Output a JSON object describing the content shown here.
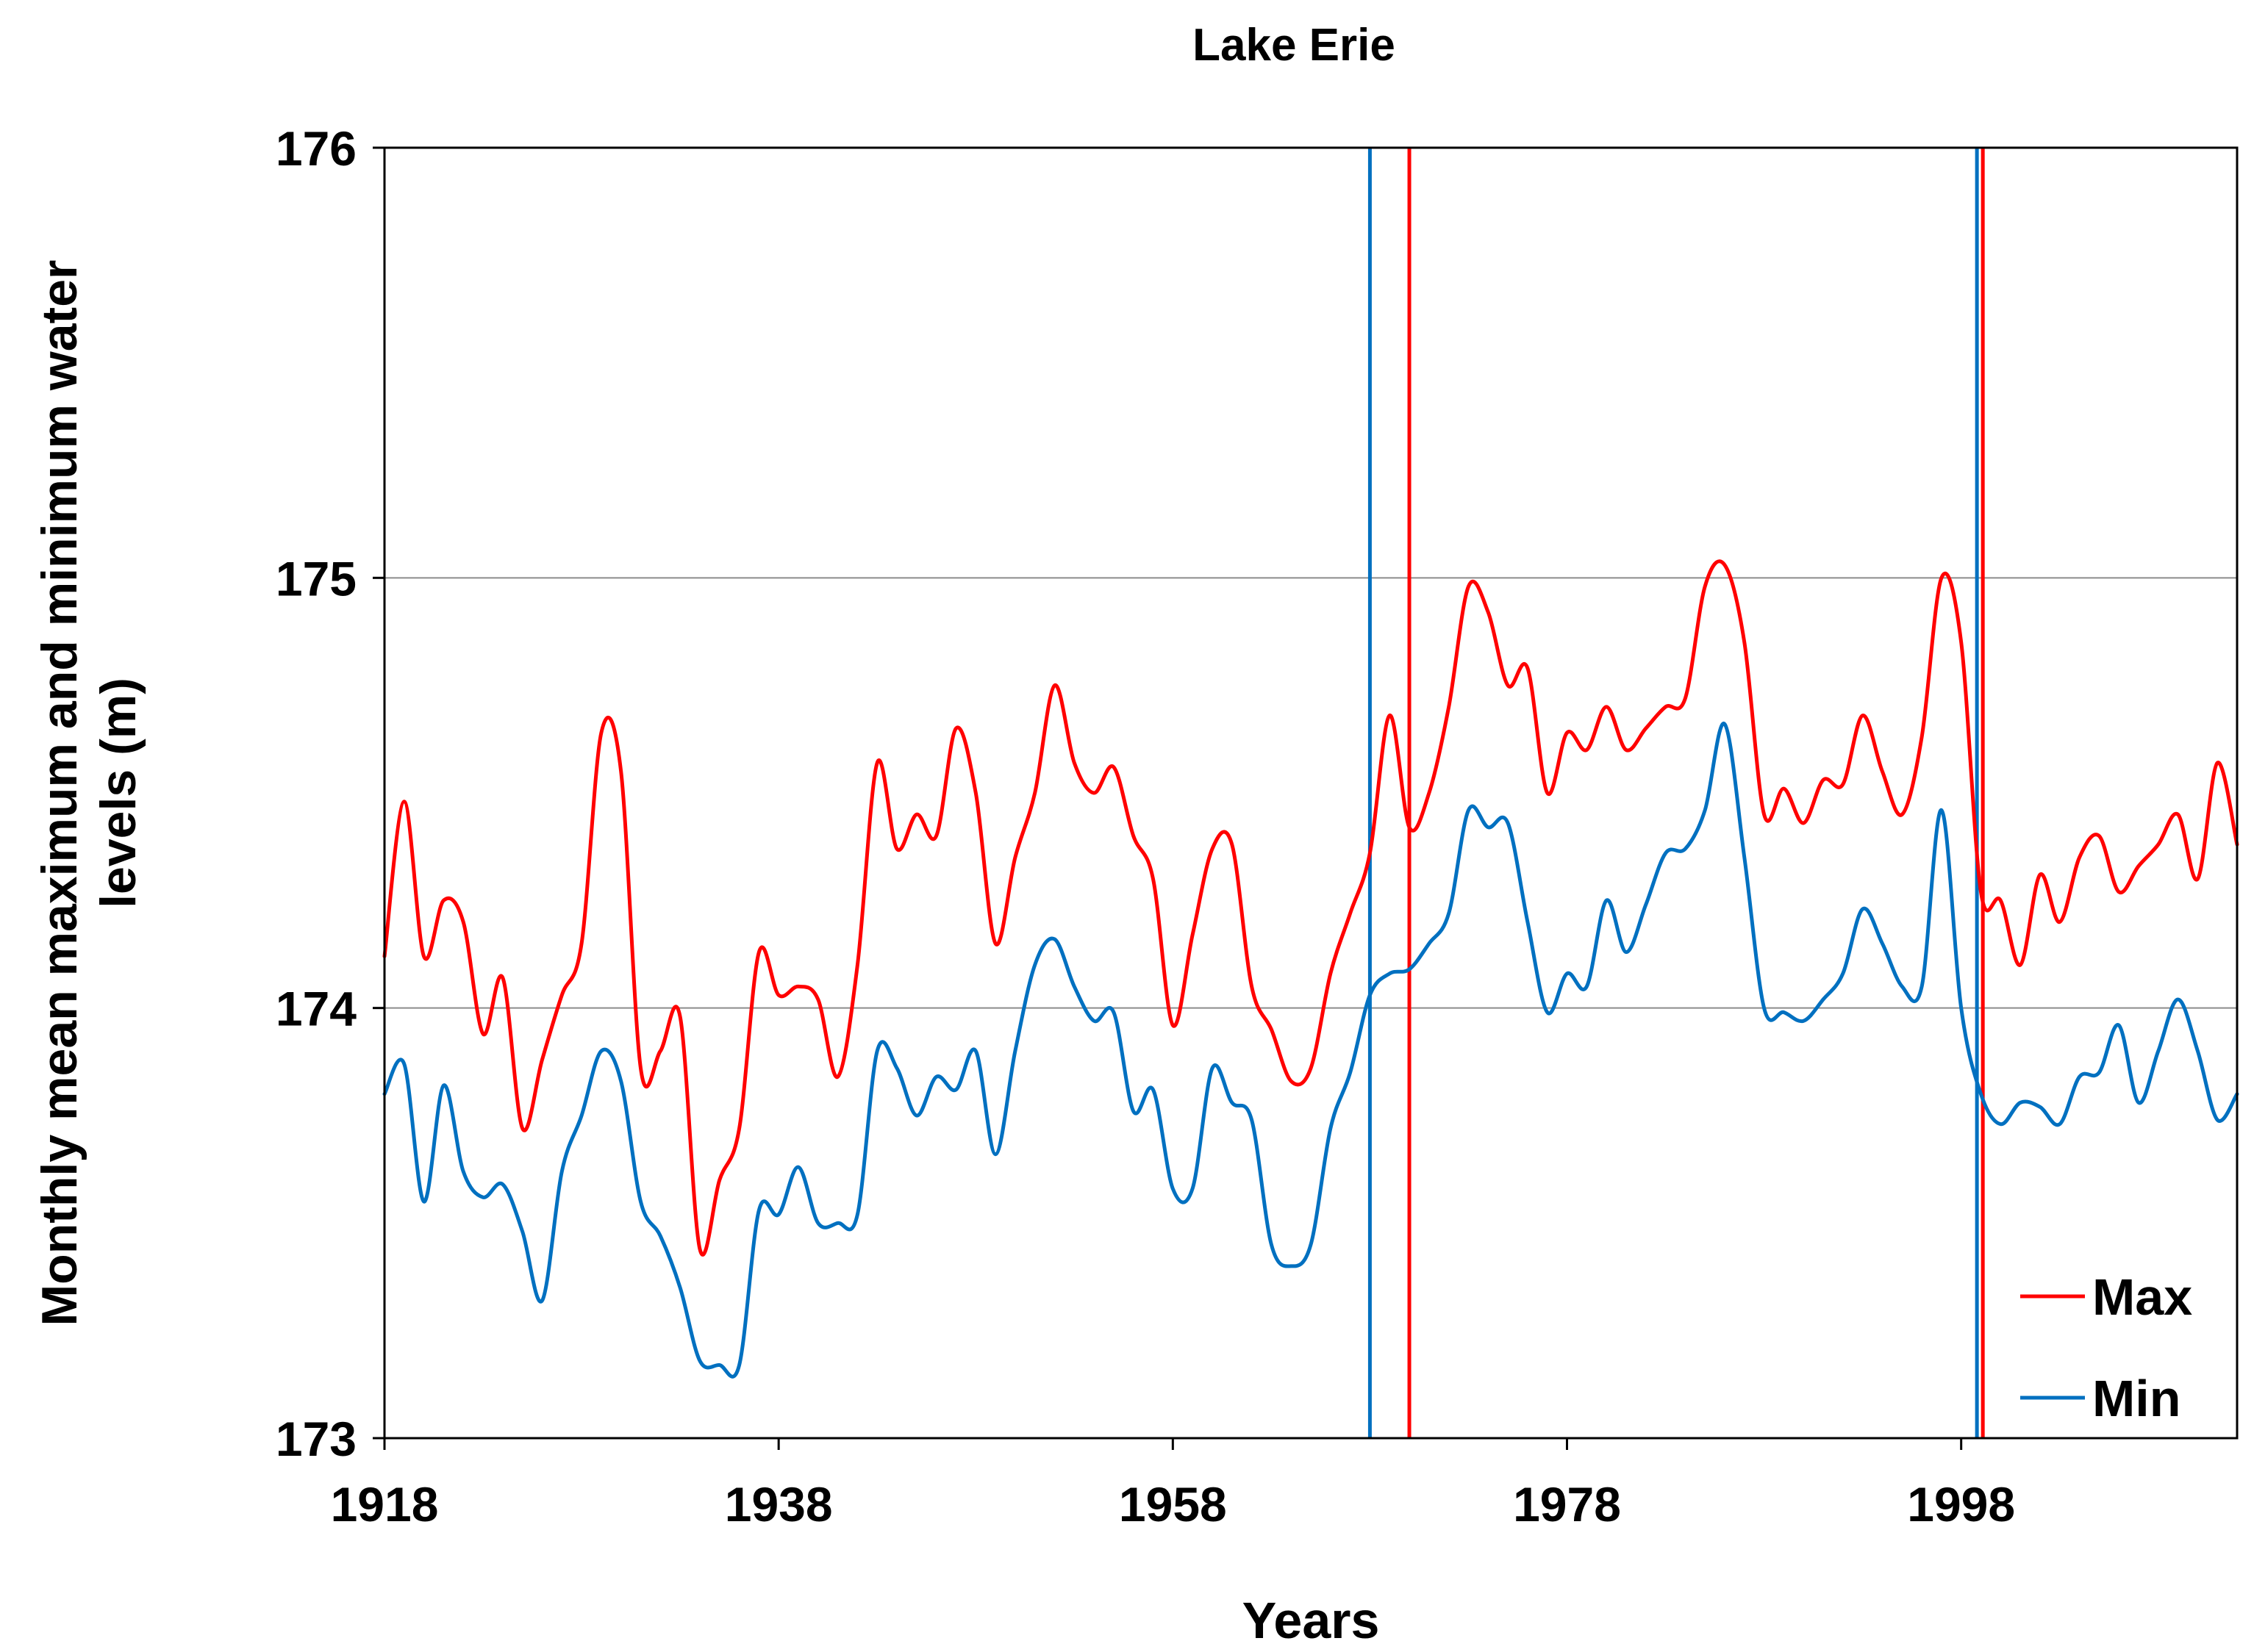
{
  "chart_data": {
    "type": "line",
    "title": "Lake Erie",
    "xlabel": "Years",
    "ylabel": "Monthly mean maximum and minimum water levels (m)",
    "xlim": [
      1918,
      2012
    ],
    "ylim": [
      173,
      176
    ],
    "x_ticks": [
      1918,
      1938,
      1958,
      1978,
      1998
    ],
    "y_ticks": [
      173,
      174,
      175,
      176
    ],
    "grid": "horizontal",
    "legend_position": "bottom-right",
    "series": [
      {
        "name": "Max",
        "color": "#ff0000",
        "x": [
          1918,
          1919,
          1920,
          1921,
          1922,
          1923,
          1924,
          1925,
          1926,
          1927,
          1928,
          1929,
          1930,
          1931,
          1932,
          1933,
          1934,
          1935,
          1936,
          1937,
          1938,
          1939,
          1940,
          1941,
          1942,
          1943,
          1944,
          1945,
          1946,
          1947,
          1948,
          1949,
          1950,
          1951,
          1952,
          1953,
          1954,
          1955,
          1956,
          1957,
          1958,
          1959,
          1960,
          1961,
          1962,
          1963,
          1964,
          1965,
          1966,
          1967,
          1968,
          1969,
          1970,
          1971,
          1972,
          1973,
          1974,
          1975,
          1976,
          1977,
          1978,
          1979,
          1980,
          1981,
          1982,
          1983,
          1984,
          1985,
          1986,
          1987,
          1988,
          1989,
          1990,
          1991,
          1992,
          1993,
          1994,
          1995,
          1996,
          1997,
          1998,
          1999,
          2000,
          2001,
          2002,
          2003,
          2004,
          2005,
          2006,
          2007,
          2008,
          2009,
          2010,
          2011,
          2012
        ],
        "values": [
          174.12,
          174.48,
          174.12,
          174.25,
          174.2,
          173.94,
          174.07,
          173.72,
          173.88,
          174.03,
          174.15,
          174.64,
          174.55,
          173.86,
          173.9,
          173.98,
          173.44,
          173.6,
          173.72,
          174.13,
          174.03,
          174.05,
          174.02,
          173.84,
          174.1,
          174.57,
          174.37,
          174.45,
          174.4,
          174.65,
          174.5,
          174.15,
          174.35,
          174.5,
          174.75,
          174.57,
          174.5,
          174.56,
          174.4,
          174.3,
          173.96,
          174.17,
          174.37,
          174.38,
          174.05,
          173.95,
          173.83,
          173.86,
          174.08,
          174.22,
          174.36,
          174.68,
          174.42,
          174.5,
          174.7,
          174.98,
          174.92,
          174.75,
          174.79,
          174.5,
          174.64,
          174.6,
          174.7,
          174.6,
          174.65,
          174.7,
          174.72,
          174.98,
          175.03,
          174.85,
          174.45,
          174.51,
          174.43,
          174.53,
          174.52,
          174.68,
          174.55,
          174.45,
          174.63,
          175.0,
          174.85,
          174.27,
          174.25,
          174.1,
          174.31,
          174.2,
          174.35,
          174.4,
          174.27,
          174.33,
          174.38,
          174.45,
          174.3,
          174.57,
          174.38
        ]
      },
      {
        "name": "Min",
        "color": "#0070c0",
        "x": [
          1918,
          1919,
          1920,
          1921,
          1922,
          1923,
          1924,
          1925,
          1926,
          1927,
          1928,
          1929,
          1930,
          1931,
          1932,
          1933,
          1934,
          1935,
          1936,
          1937,
          1938,
          1939,
          1940,
          1941,
          1942,
          1943,
          1944,
          1945,
          1946,
          1947,
          1948,
          1949,
          1950,
          1951,
          1952,
          1953,
          1954,
          1955,
          1956,
          1957,
          1958,
          1959,
          1960,
          1961,
          1962,
          1963,
          1964,
          1965,
          1966,
          1967,
          1968,
          1969,
          1970,
          1971,
          1972,
          1973,
          1974,
          1975,
          1976,
          1977,
          1978,
          1979,
          1980,
          1981,
          1982,
          1983,
          1984,
          1985,
          1986,
          1987,
          1988,
          1989,
          1990,
          1991,
          1992,
          1993,
          1994,
          1995,
          1996,
          1997,
          1998,
          1999,
          2000,
          2001,
          2002,
          2003,
          2004,
          2005,
          2006,
          2007,
          2008,
          2009,
          2010,
          2011,
          2012
        ],
        "values": [
          173.8,
          173.87,
          173.55,
          173.82,
          173.62,
          173.56,
          173.59,
          173.48,
          173.32,
          173.62,
          173.75,
          173.9,
          173.83,
          173.55,
          173.47,
          173.35,
          173.18,
          173.17,
          173.17,
          173.53,
          173.52,
          173.63,
          173.5,
          173.5,
          173.52,
          173.9,
          173.86,
          173.75,
          173.84,
          173.81,
          173.9,
          173.66,
          173.9,
          174.1,
          174.16,
          174.05,
          173.97,
          173.99,
          173.76,
          173.81,
          173.58,
          173.58,
          173.86,
          173.78,
          173.74,
          173.45,
          173.4,
          173.45,
          173.72,
          173.85,
          174.03,
          174.08,
          174.09,
          174.15,
          174.22,
          174.46,
          174.42,
          174.43,
          174.2,
          173.99,
          174.08,
          174.05,
          174.25,
          174.13,
          174.24,
          174.36,
          174.37,
          174.46,
          174.66,
          174.35,
          174.0,
          173.99,
          173.97,
          174.02,
          174.08,
          174.23,
          174.15,
          174.05,
          174.05,
          174.46,
          174.0,
          173.8,
          173.73,
          173.78,
          173.77,
          173.73,
          173.84,
          173.85,
          173.96,
          173.78,
          173.9,
          174.02,
          173.9,
          173.74,
          173.8
        ]
      }
    ],
    "vertical_markers": [
      {
        "series": "Min",
        "x": 1968,
        "color": "#0070c0"
      },
      {
        "series": "Max",
        "x": 1970,
        "color": "#ff0000"
      },
      {
        "series": "Min",
        "x": 1998.8,
        "color": "#0070c0"
      },
      {
        "series": "Max",
        "x": 1999.1,
        "color": "#ff0000"
      }
    ]
  }
}
